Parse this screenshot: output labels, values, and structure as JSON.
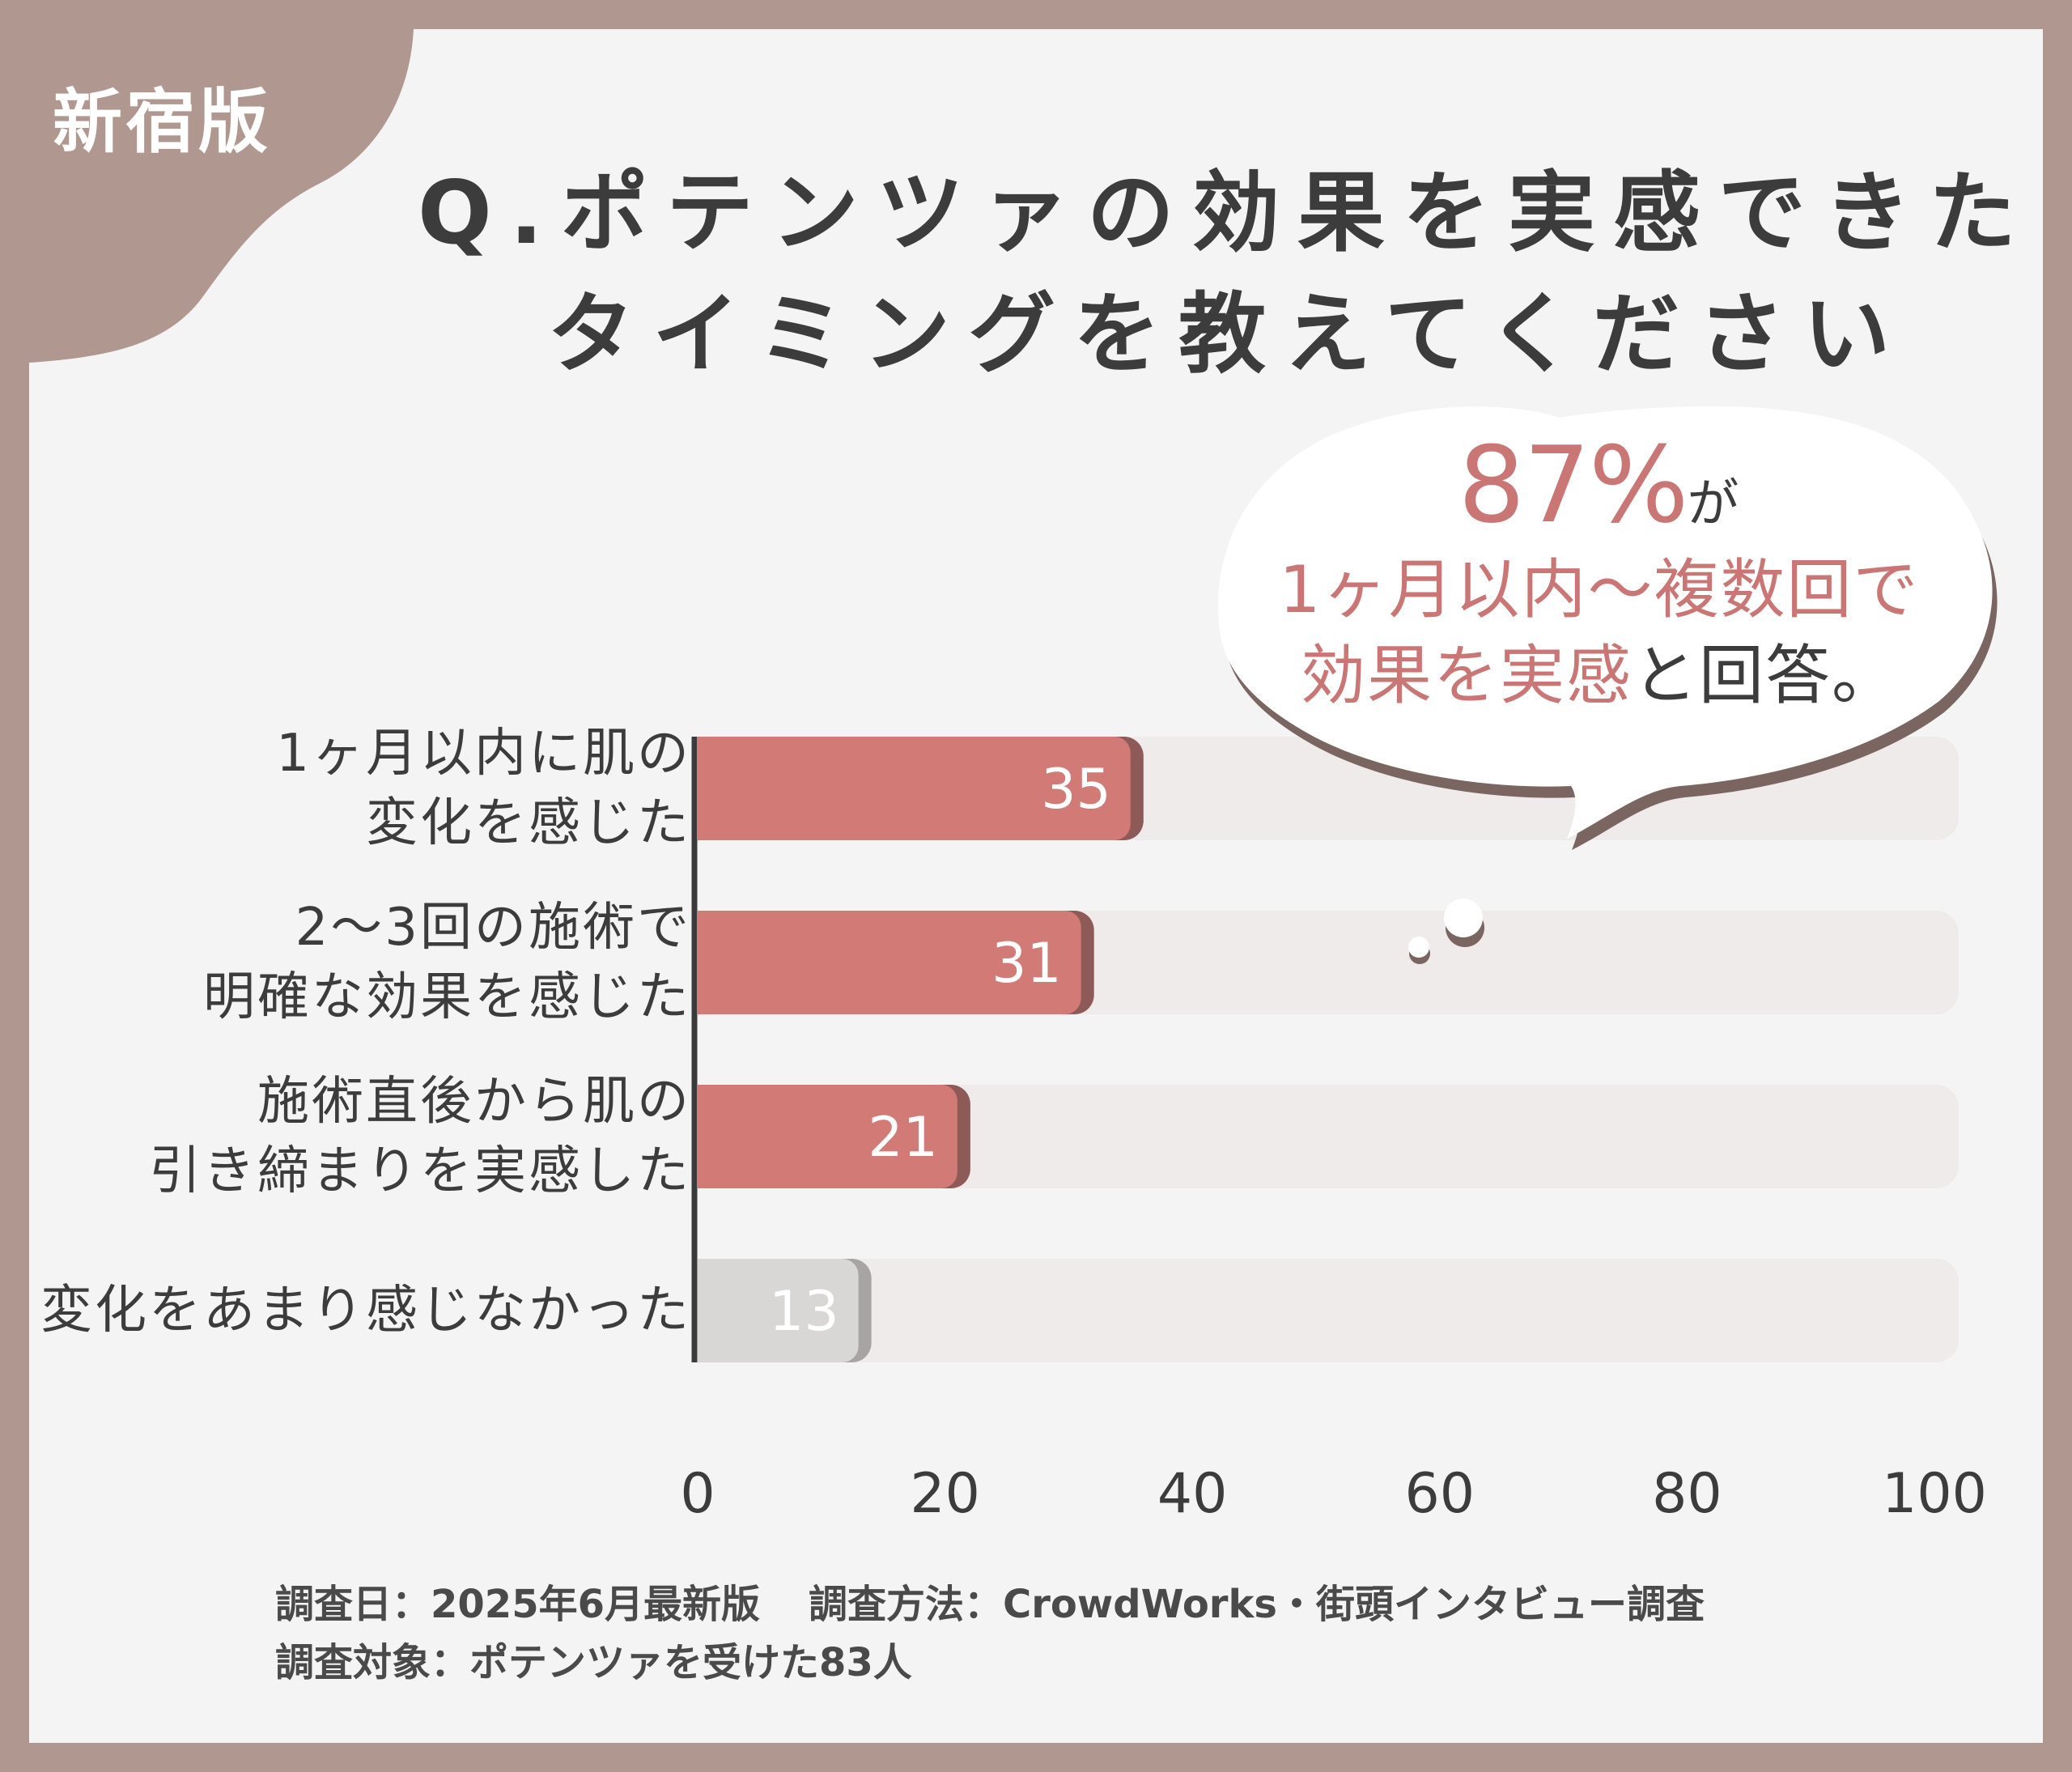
{
  "badge": "新宿版",
  "title_lines": [
    "Q.ポテンツァの効果を実感できた",
    "タイミングを教えてください"
  ],
  "callout": {
    "percent": "87%",
    "ga": "が",
    "line2": "1ヶ月以内〜複数回で",
    "line3_highlight": "効果を実感",
    "line3_rest": "と回答。"
  },
  "chart_data": {
    "type": "bar",
    "orientation": "horizontal",
    "categories": [
      [
        "1ヶ月以内に肌の",
        "変化を感じた"
      ],
      [
        "2〜3回の施術で",
        "明確な効果を感じた"
      ],
      [
        "施術直後から肌の",
        "引き締まりを実感した"
      ],
      [
        "変化をあまり感じなかった"
      ]
    ],
    "values": [
      35,
      31,
      21,
      13
    ],
    "value_labels": [
      "35",
      "31",
      "21",
      "13"
    ],
    "xlim": [
      0,
      100
    ],
    "xticks": [
      "0",
      "20",
      "40",
      "60",
      "80",
      "100"
    ],
    "grid": false,
    "colors": {
      "highlight": "#d17a76",
      "highlight_shadow": "#8e5a57",
      "muted": "#d9d6d6",
      "muted_shadow": "#a9a4a4",
      "track": "#efebea",
      "axis": "#3a3a3a"
    }
  },
  "footnote": {
    "date": "調査日：2025年6月最新版",
    "method": "調査方法：CrowdWorks・街頭インタビュー調査",
    "target": "調査対象：ポテンツァを受けた83人"
  },
  "colors": {
    "frame": "#b09890",
    "card": "#f5f4f4",
    "title": "#3c3c3c",
    "accent": "#c97674"
  }
}
